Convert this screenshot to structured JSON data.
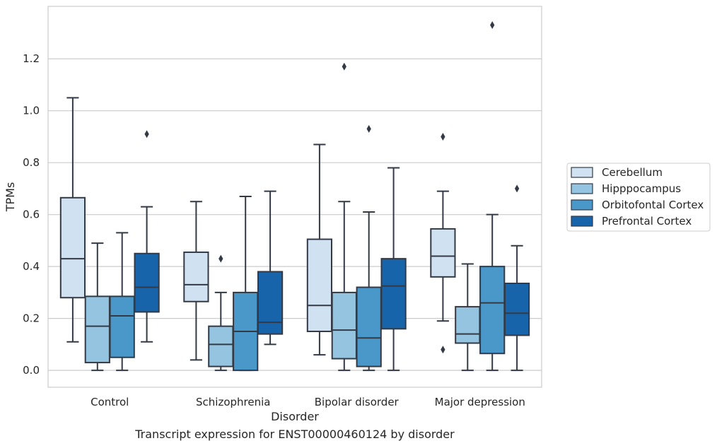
{
  "chart_data": {
    "type": "box",
    "title": "",
    "caption": "Transcript expression for ENST00000460124 by disorder",
    "xlabel": "Disorder",
    "ylabel": "TPMs",
    "ylim": [
      -0.065,
      1.402
    ],
    "yticks": [
      0.0,
      0.2,
      0.4,
      0.6,
      0.8,
      1.0,
      1.2
    ],
    "ytick_labels": [
      "0.0",
      "0.2",
      "0.4",
      "0.6",
      "0.8",
      "1.0",
      "1.2"
    ],
    "grid": "horizontal",
    "legend_position": "right",
    "categories": [
      "Control",
      "Schizophrenia",
      "Bipolar disorder",
      "Major depression"
    ],
    "series": [
      {
        "name": "Cerebellum",
        "color": "#d0e1f2",
        "boxes": [
          {
            "whisker_low": 0.11,
            "q1": 0.28,
            "median": 0.43,
            "q3": 0.665,
            "whisker_high": 1.05,
            "outliers": []
          },
          {
            "whisker_low": 0.04,
            "q1": 0.265,
            "median": 0.33,
            "q3": 0.455,
            "whisker_high": 0.65,
            "outliers": []
          },
          {
            "whisker_low": 0.06,
            "q1": 0.15,
            "median": 0.25,
            "q3": 0.505,
            "whisker_high": 0.87,
            "outliers": []
          },
          {
            "whisker_low": 0.19,
            "q1": 0.36,
            "median": 0.44,
            "q3": 0.545,
            "whisker_high": 0.69,
            "outliers": [
              0.9,
              0.08
            ]
          }
        ]
      },
      {
        "name": "Hipppocampus",
        "color": "#94c4df",
        "boxes": [
          {
            "whisker_low": 0.0,
            "q1": 0.03,
            "median": 0.17,
            "q3": 0.285,
            "whisker_high": 0.49,
            "outliers": []
          },
          {
            "whisker_low": 0.0,
            "q1": 0.015,
            "median": 0.1,
            "q3": 0.17,
            "whisker_high": 0.3,
            "outliers": [
              0.43
            ]
          },
          {
            "whisker_low": 0.0,
            "q1": 0.045,
            "median": 0.155,
            "q3": 0.3,
            "whisker_high": 0.65,
            "outliers": [
              1.17
            ]
          },
          {
            "whisker_low": 0.0,
            "q1": 0.105,
            "median": 0.14,
            "q3": 0.245,
            "whisker_high": 0.41,
            "outliers": []
          }
        ]
      },
      {
        "name": "Orbitofontal Cortex",
        "color": "#4a98c9",
        "boxes": [
          {
            "whisker_low": 0.0,
            "q1": 0.05,
            "median": 0.21,
            "q3": 0.285,
            "whisker_high": 0.53,
            "outliers": []
          },
          {
            "whisker_low": 0.0,
            "q1": 0.0,
            "median": 0.15,
            "q3": 0.3,
            "whisker_high": 0.67,
            "outliers": []
          },
          {
            "whisker_low": 0.0,
            "q1": 0.015,
            "median": 0.125,
            "q3": 0.32,
            "whisker_high": 0.61,
            "outliers": [
              0.93
            ]
          },
          {
            "whisker_low": 0.0,
            "q1": 0.065,
            "median": 0.26,
            "q3": 0.4,
            "whisker_high": 0.6,
            "outliers": [
              1.33
            ]
          }
        ]
      },
      {
        "name": "Prefrontal Cortex",
        "color": "#1764ab",
        "boxes": [
          {
            "whisker_low": 0.11,
            "q1": 0.225,
            "median": 0.32,
            "q3": 0.45,
            "whisker_high": 0.63,
            "outliers": [
              0.91
            ]
          },
          {
            "whisker_low": 0.1,
            "q1": 0.14,
            "median": 0.185,
            "q3": 0.38,
            "whisker_high": 0.69,
            "outliers": []
          },
          {
            "whisker_low": 0.0,
            "q1": 0.16,
            "median": 0.325,
            "q3": 0.43,
            "whisker_high": 0.78,
            "outliers": []
          },
          {
            "whisker_low": 0.0,
            "q1": 0.135,
            "median": 0.22,
            "q3": 0.335,
            "whisker_high": 0.48,
            "outliers": [
              0.7
            ]
          }
        ]
      }
    ]
  }
}
